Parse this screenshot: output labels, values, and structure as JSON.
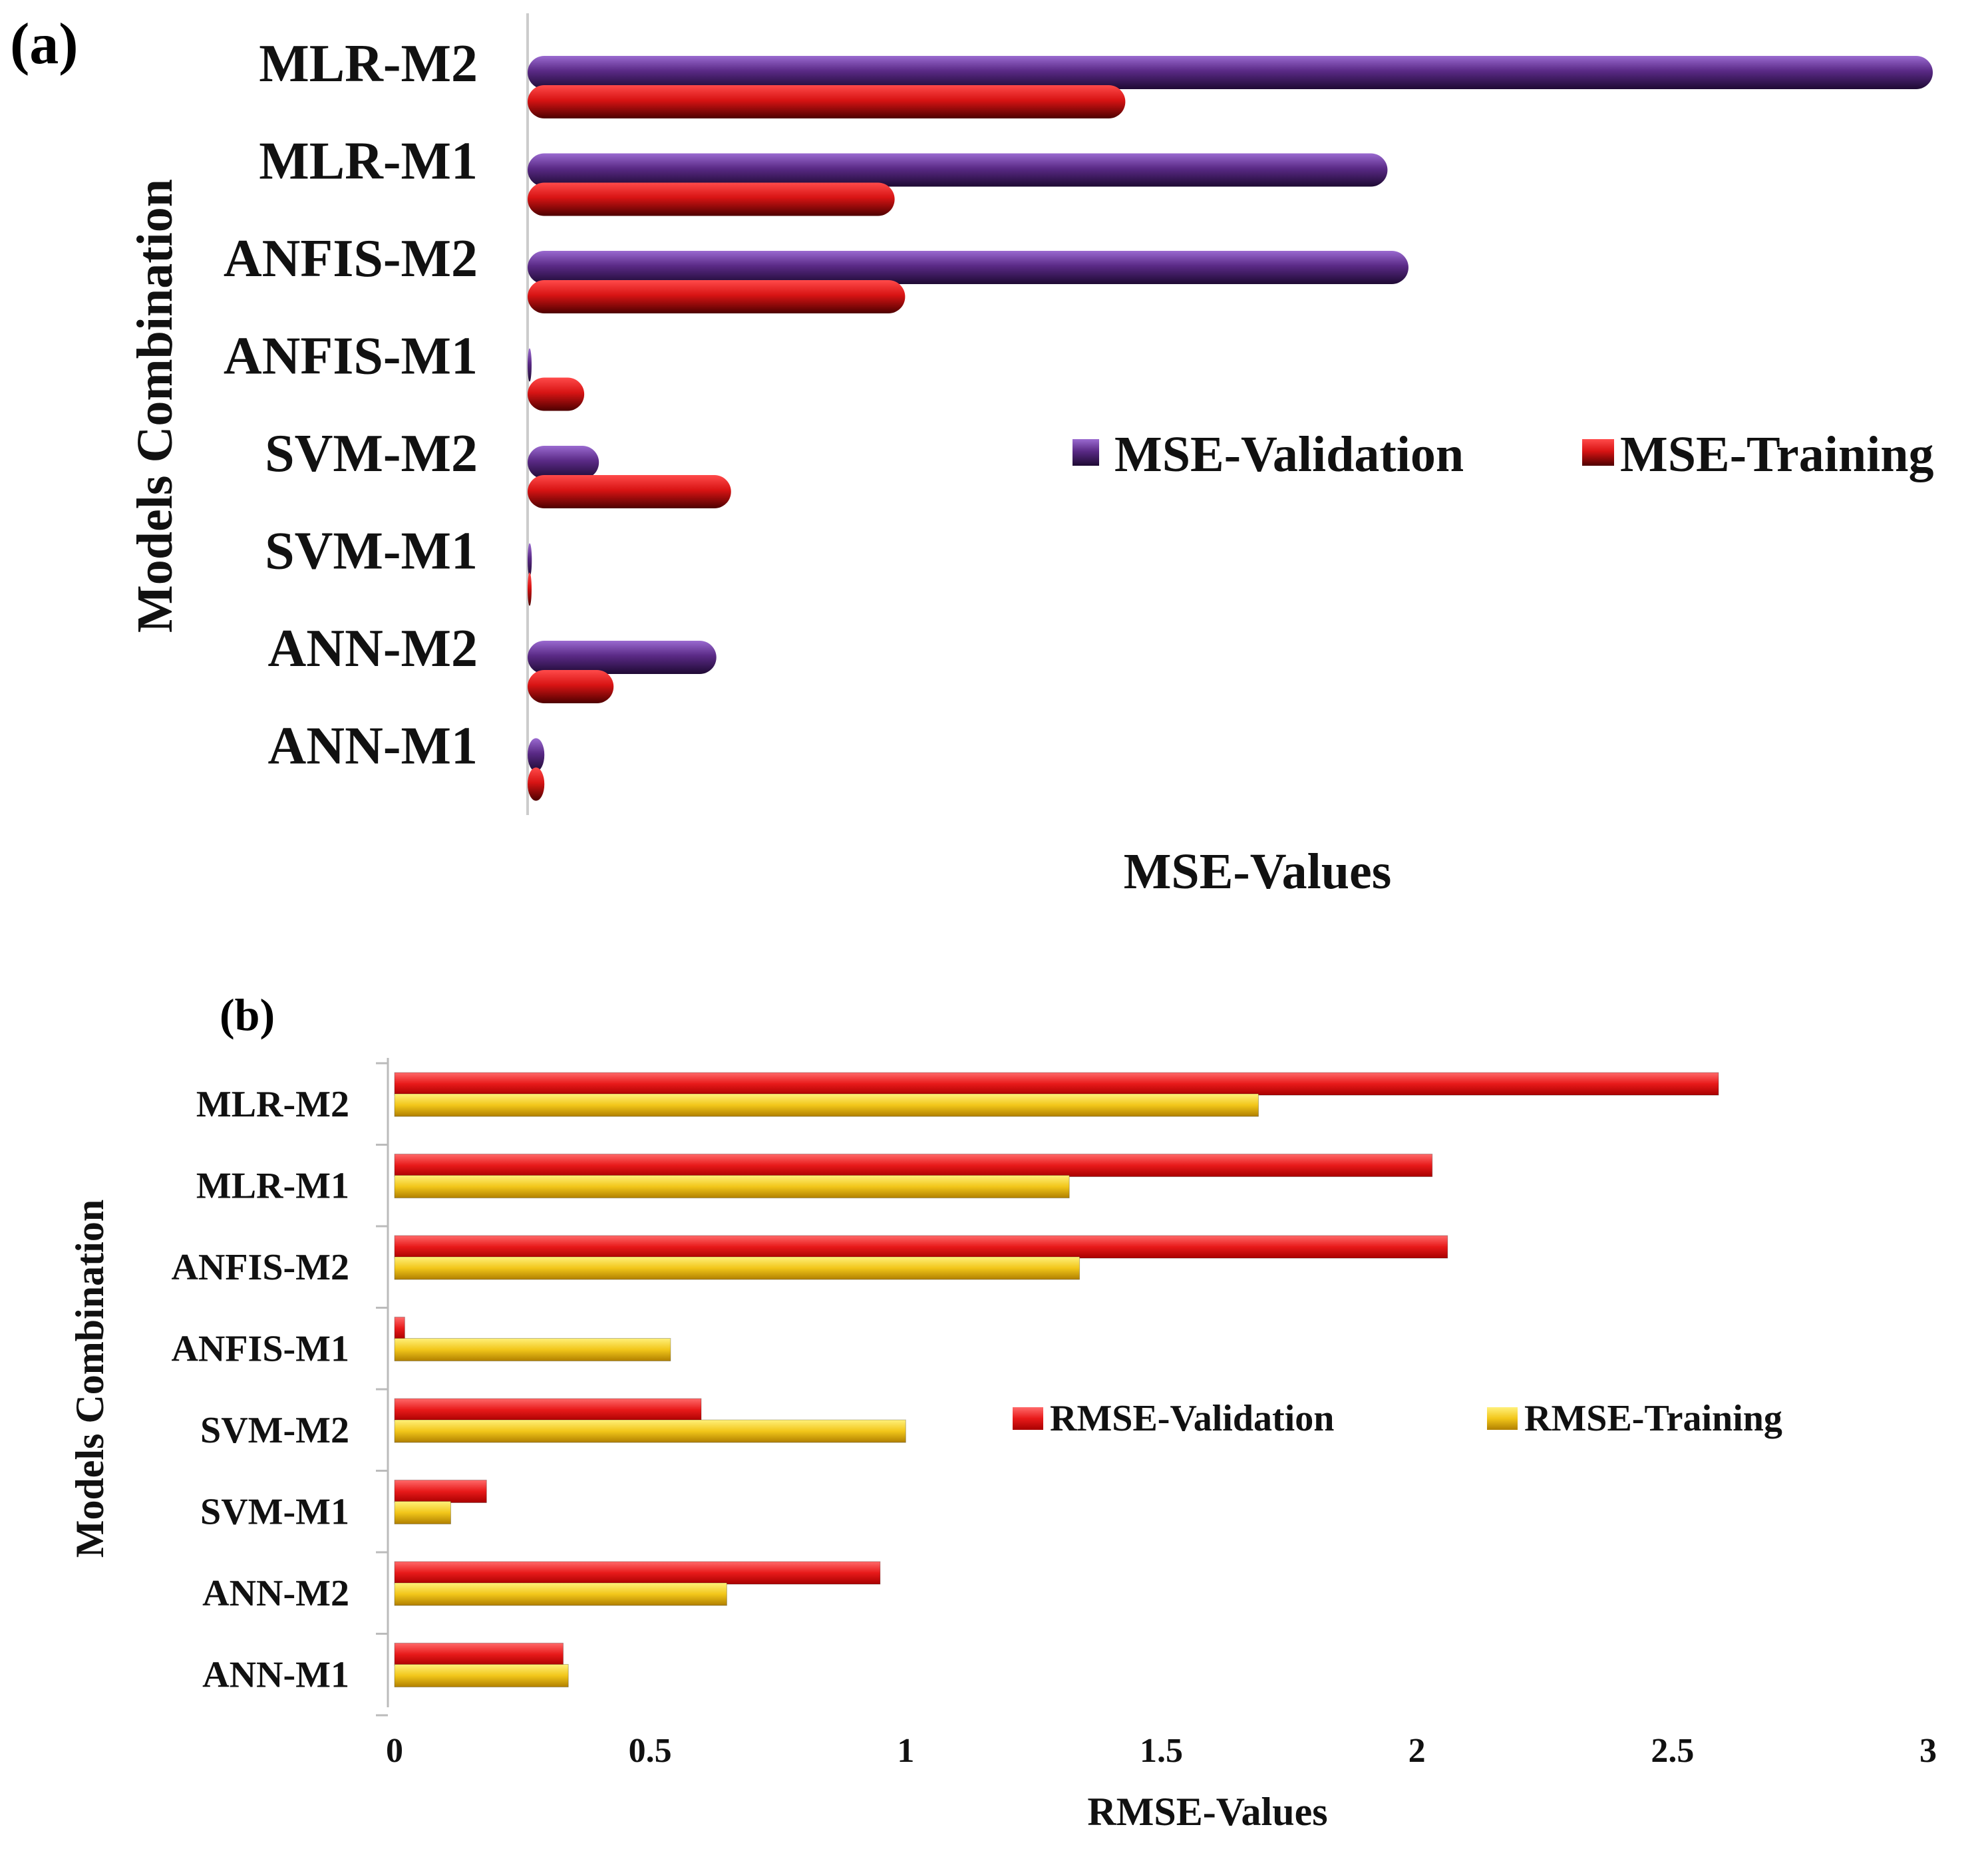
{
  "chart_data": [
    {
      "panel": "(a)",
      "type": "bar",
      "orientation": "horizontal",
      "title": "",
      "xlabel": "MSE-Values",
      "ylabel": "Models Combination",
      "categories": [
        "MLR-M2",
        "MLR-M1",
        "ANFIS-M2",
        "ANFIS-M1",
        "SVM-M2",
        "SVM-M1",
        "ANN-M2",
        "ANN-M1"
      ],
      "series": [
        {
          "name": "MSE-Validation",
          "color": "#5a2a86",
          "values": [
            6.7,
            4.1,
            4.2,
            0.0,
            0.34,
            0.02,
            0.9,
            0.08
          ]
        },
        {
          "name": "MSE-Training",
          "color": "#d81414",
          "values": [
            2.85,
            1.75,
            1.8,
            0.27,
            0.97,
            0.0,
            0.41,
            0.08
          ]
        }
      ],
      "xlim": [
        0,
        6.7
      ],
      "grid": false,
      "legend": "right"
    },
    {
      "panel": "(b)",
      "type": "bar",
      "orientation": "horizontal",
      "title": "",
      "xlabel": "RMSE-Values",
      "ylabel": "Models Combination",
      "categories": [
        "MLR-M2",
        "MLR-M1",
        "ANFIS-M2",
        "ANFIS-M1",
        "SVM-M2",
        "SVM-M1",
        "ANN-M2",
        "ANN-M1"
      ],
      "series": [
        {
          "name": "RMSE-Validation",
          "color": "#e81a1a",
          "values": [
            2.59,
            2.03,
            2.06,
            0.02,
            0.6,
            0.18,
            0.95,
            0.33
          ]
        },
        {
          "name": "RMSE-Training",
          "color": "#f2c61a",
          "values": [
            1.69,
            1.32,
            1.34,
            0.54,
            1.0,
            0.11,
            0.65,
            0.34
          ]
        }
      ],
      "xlim": [
        0,
        3
      ],
      "xticks": [
        "0",
        "0.5",
        "1",
        "1.5",
        "2",
        "2.5",
        "3"
      ],
      "grid": false,
      "legend": "right"
    }
  ]
}
